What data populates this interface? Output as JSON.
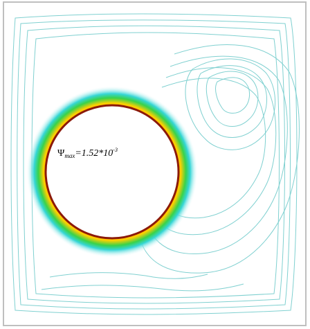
{
  "figure": {
    "annotation": {
      "symbol": "Ψ",
      "subscript": "max",
      "value_prefix": "=1.52*10",
      "exponent": "-3"
    },
    "colors": {
      "frame": "#bfbfbf",
      "outer_contours": "#7fd0d0",
      "inner_ring": "#8b1a0a",
      "ring_red": "#ff3a00",
      "ring_yellow": "#ffd000",
      "ring_green": "#39d24a",
      "ring_cyan": "#35d6d6"
    }
  }
}
